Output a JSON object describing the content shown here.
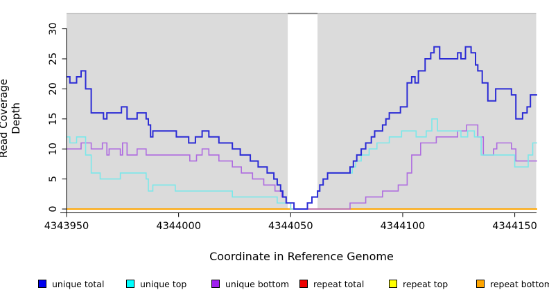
{
  "y_axis": {
    "label": "Read Coverage Depth",
    "ticks": [
      0,
      5,
      10,
      15,
      20,
      25,
      30
    ]
  },
  "x_axis": {
    "label": "Coordinate in Reference Genome",
    "ticks": [
      4343950,
      4344000,
      4344050,
      4344100,
      4344150
    ]
  },
  "legend": {
    "items": [
      {
        "label": "unique total",
        "color": "#0000EE"
      },
      {
        "label": "unique top",
        "color": "#00FFFF"
      },
      {
        "label": "unique bottom",
        "color": "#A020F0"
      },
      {
        "label": "repeat total",
        "color": "#EE0000"
      },
      {
        "label": "repeat top",
        "color": "#FFFF00"
      },
      {
        "label": "repeat bottom",
        "color": "#FFA500"
      }
    ]
  },
  "colors": {
    "plot_bg": "#DBDBDB",
    "gap_band": "#FFFFFF",
    "top_border": "#C6C6C6",
    "gap_top_border": "#8C8C8C",
    "axis": "#000000",
    "unique_total_line": "#2B2BD5",
    "unique_top_line": "#7AE8EA",
    "unique_bottom_line": "#AE6BE0",
    "repeat_total_line": "#EE0000",
    "repeat_top_line": "#FFFF00",
    "repeat_bottom_line": "#FFA500"
  },
  "chart_data": {
    "type": "line",
    "subtype": "step-coverage",
    "title": "",
    "xlabel": "Coordinate in Reference Genome",
    "ylabel": "Read Coverage Depth",
    "x_range": [
      4343950,
      4344160
    ],
    "y_range": [
      0,
      31
    ],
    "grid": false,
    "legend_position": "bottom",
    "gap_region": [
      4344048.7,
      4344062
    ],
    "series": [
      {
        "name": "repeat total",
        "color_key": "repeat_total_line",
        "steps": [
          [
            4343950,
            0
          ],
          [
            4344160,
            0
          ]
        ]
      },
      {
        "name": "repeat top",
        "color_key": "repeat_top_line",
        "steps": [
          [
            4343950,
            0
          ],
          [
            4344160,
            0
          ]
        ]
      },
      {
        "name": "repeat bottom",
        "color_key": "repeat_bottom_line",
        "steps": [
          [
            4343950,
            0
          ],
          [
            4344160,
            0
          ]
        ]
      },
      {
        "name": "unique bottom",
        "color_key": "unique_bottom_line",
        "steps": [
          [
            4343950,
            10
          ],
          [
            4343956.5,
            11
          ],
          [
            4343961,
            10
          ],
          [
            4343966,
            11
          ],
          [
            4343968,
            9
          ],
          [
            4343969,
            10
          ],
          [
            4343974,
            9
          ],
          [
            4343975,
            11
          ],
          [
            4343977,
            9
          ],
          [
            4343981.5,
            10
          ],
          [
            4343985.5,
            9
          ],
          [
            4344005,
            8
          ],
          [
            4344008,
            9
          ],
          [
            4344010.5,
            10
          ],
          [
            4344013.5,
            9
          ],
          [
            4344018,
            8
          ],
          [
            4344024,
            7
          ],
          [
            4344028,
            6
          ],
          [
            4344033,
            5
          ],
          [
            4344038,
            4
          ],
          [
            4344043,
            3
          ],
          [
            4344046,
            2
          ],
          [
            4344048,
            1
          ],
          [
            4344050,
            0
          ],
          [
            4344076.5,
            1
          ],
          [
            4344083.5,
            2
          ],
          [
            4344091,
            3
          ],
          [
            4344098,
            4
          ],
          [
            4344102,
            6
          ],
          [
            4344104,
            9
          ],
          [
            4344108,
            11
          ],
          [
            4344115,
            12
          ],
          [
            4344124.5,
            13
          ],
          [
            4344128.5,
            14
          ],
          [
            4344133.5,
            12
          ],
          [
            4344136,
            9
          ],
          [
            4344140.5,
            10
          ],
          [
            4344142,
            11
          ],
          [
            4344148.5,
            10
          ],
          [
            4344150.5,
            8
          ],
          [
            4344160,
            8
          ]
        ]
      },
      {
        "name": "unique top",
        "color_key": "unique_top_line",
        "steps": [
          [
            4343950,
            12
          ],
          [
            4343951.5,
            11
          ],
          [
            4343954.5,
            12
          ],
          [
            4343958.5,
            9
          ],
          [
            4343961,
            6
          ],
          [
            4343965,
            5
          ],
          [
            4343974,
            6
          ],
          [
            4343985.5,
            5
          ],
          [
            4343986.5,
            3
          ],
          [
            4343988.5,
            4
          ],
          [
            4343998.5,
            3
          ],
          [
            4344024,
            2
          ],
          [
            4344044,
            1
          ],
          [
            4344050,
            0
          ],
          [
            4344057.5,
            1
          ],
          [
            4344059.5,
            2
          ],
          [
            4344062,
            3
          ],
          [
            4344063,
            4
          ],
          [
            4344064.5,
            5
          ],
          [
            4344066.5,
            6
          ],
          [
            4344077.5,
            7
          ],
          [
            4344079,
            8
          ],
          [
            4344081.5,
            9
          ],
          [
            4344085,
            10
          ],
          [
            4344088.5,
            11
          ],
          [
            4344094,
            12
          ],
          [
            4344099.5,
            13
          ],
          [
            4344106,
            12
          ],
          [
            4344110.5,
            13
          ],
          [
            4344113,
            15
          ],
          [
            4344115.5,
            13
          ],
          [
            4344126,
            12
          ],
          [
            4344129,
            13
          ],
          [
            4344132,
            12
          ],
          [
            4344135,
            9
          ],
          [
            4344150,
            7
          ],
          [
            4344156,
            9
          ],
          [
            4344158,
            11
          ],
          [
            4344160,
            11
          ]
        ]
      },
      {
        "name": "unique total",
        "color_key": "unique_total_line",
        "steps": [
          [
            4343950,
            22
          ],
          [
            4343951.5,
            21
          ],
          [
            4343954.5,
            22
          ],
          [
            4343956.5,
            23
          ],
          [
            4343958.5,
            20
          ],
          [
            4343961,
            16
          ],
          [
            4343966.5,
            15
          ],
          [
            4343968,
            16
          ],
          [
            4343974.5,
            17
          ],
          [
            4343977,
            15
          ],
          [
            4343981.5,
            16
          ],
          [
            4343985.5,
            15
          ],
          [
            4343986.5,
            14
          ],
          [
            4343987.5,
            12
          ],
          [
            4343988.5,
            13
          ],
          [
            4343999,
            12
          ],
          [
            4344004.5,
            11
          ],
          [
            4344007.5,
            12
          ],
          [
            4344010.5,
            13
          ],
          [
            4344013.5,
            12
          ],
          [
            4344018,
            11
          ],
          [
            4344024,
            10
          ],
          [
            4344027.5,
            9
          ],
          [
            4344032,
            8
          ],
          [
            4344035.5,
            7
          ],
          [
            4344039.5,
            6
          ],
          [
            4344042.5,
            5
          ],
          [
            4344044,
            4
          ],
          [
            4344045.5,
            3
          ],
          [
            4344046.5,
            2
          ],
          [
            4344048,
            1
          ],
          [
            4344051.5,
            0
          ],
          [
            4344057.5,
            1
          ],
          [
            4344059.5,
            2
          ],
          [
            4344062,
            3
          ],
          [
            4344063,
            4
          ],
          [
            4344064.5,
            5
          ],
          [
            4344066.5,
            6
          ],
          [
            4344076.5,
            7
          ],
          [
            4344078,
            8
          ],
          [
            4344079.5,
            9
          ],
          [
            4344081.5,
            10
          ],
          [
            4344083.5,
            11
          ],
          [
            4344086,
            12
          ],
          [
            4344087.5,
            13
          ],
          [
            4344091,
            14
          ],
          [
            4344092.5,
            15
          ],
          [
            4344094,
            16
          ],
          [
            4344099,
            17
          ],
          [
            4344102,
            21
          ],
          [
            4344104,
            22
          ],
          [
            4344105.5,
            21
          ],
          [
            4344107,
            23
          ],
          [
            4344110,
            25
          ],
          [
            4344112.5,
            26
          ],
          [
            4344114,
            27
          ],
          [
            4344116.5,
            25
          ],
          [
            4344124.5,
            26
          ],
          [
            4344126,
            25
          ],
          [
            4344128,
            27
          ],
          [
            4344130.5,
            26
          ],
          [
            4344132.5,
            24
          ],
          [
            4344133.5,
            23
          ],
          [
            4344135.5,
            21
          ],
          [
            4344138,
            18
          ],
          [
            4344141.5,
            20
          ],
          [
            4344148.5,
            19
          ],
          [
            4344150.5,
            15
          ],
          [
            4344153.5,
            16
          ],
          [
            4344155.5,
            17
          ],
          [
            4344157,
            19
          ],
          [
            4344160,
            19
          ]
        ]
      }
    ]
  }
}
